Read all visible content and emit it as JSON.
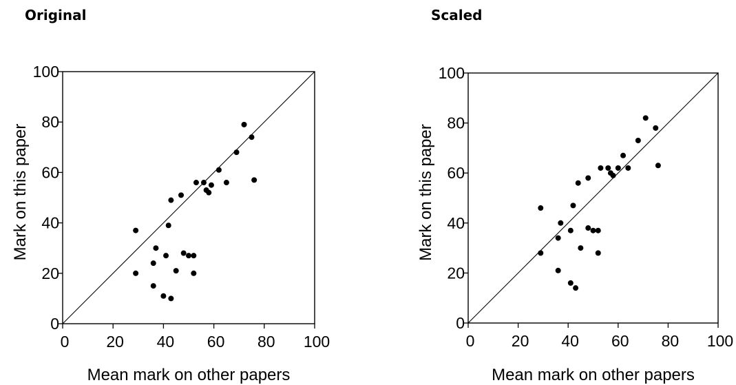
{
  "chart_data": [
    {
      "type": "scatter",
      "title": "Original",
      "xlabel": "Mean mark on other papers",
      "ylabel": "Mark on this paper",
      "xlim": [
        0,
        100
      ],
      "ylim": [
        0,
        100
      ],
      "xticks": [
        0,
        20,
        40,
        60,
        80,
        100
      ],
      "yticks": [
        0,
        20,
        40,
        60,
        80,
        100
      ],
      "reference_line": "y = x",
      "grid": false,
      "legend": "none",
      "points": [
        {
          "x": 29,
          "y": 37
        },
        {
          "x": 29,
          "y": 20
        },
        {
          "x": 36,
          "y": 24
        },
        {
          "x": 36,
          "y": 15
        },
        {
          "x": 37,
          "y": 30
        },
        {
          "x": 40,
          "y": 11
        },
        {
          "x": 41,
          "y": 27
        },
        {
          "x": 42,
          "y": 39
        },
        {
          "x": 43,
          "y": 10
        },
        {
          "x": 43,
          "y": 49
        },
        {
          "x": 45,
          "y": 21
        },
        {
          "x": 47,
          "y": 51
        },
        {
          "x": 48,
          "y": 28
        },
        {
          "x": 50,
          "y": 27
        },
        {
          "x": 52,
          "y": 20
        },
        {
          "x": 52,
          "y": 27
        },
        {
          "x": 53,
          "y": 56
        },
        {
          "x": 56,
          "y": 56
        },
        {
          "x": 57,
          "y": 53
        },
        {
          "x": 58,
          "y": 52
        },
        {
          "x": 59,
          "y": 55
        },
        {
          "x": 62,
          "y": 61
        },
        {
          "x": 65,
          "y": 56
        },
        {
          "x": 69,
          "y": 68
        },
        {
          "x": 72,
          "y": 79
        },
        {
          "x": 75,
          "y": 74
        },
        {
          "x": 76,
          "y": 57
        }
      ]
    },
    {
      "type": "scatter",
      "title": "Scaled",
      "xlabel": "Mean mark on other papers",
      "ylabel": "Mark on this paper",
      "xlim": [
        0,
        100
      ],
      "ylim": [
        0,
        100
      ],
      "xticks": [
        0,
        20,
        40,
        60,
        80,
        100
      ],
      "yticks": [
        0,
        20,
        40,
        60,
        80,
        100
      ],
      "reference_line": "y = x",
      "grid": false,
      "legend": "none",
      "points": [
        {
          "x": 29,
          "y": 46
        },
        {
          "x": 29,
          "y": 28
        },
        {
          "x": 36,
          "y": 34
        },
        {
          "x": 36,
          "y": 21
        },
        {
          "x": 37,
          "y": 40
        },
        {
          "x": 41,
          "y": 16
        },
        {
          "x": 41,
          "y": 37
        },
        {
          "x": 42,
          "y": 47
        },
        {
          "x": 43,
          "y": 14
        },
        {
          "x": 44,
          "y": 56
        },
        {
          "x": 45,
          "y": 30
        },
        {
          "x": 48,
          "y": 58
        },
        {
          "x": 48,
          "y": 38
        },
        {
          "x": 50,
          "y": 37
        },
        {
          "x": 52,
          "y": 28
        },
        {
          "x": 52,
          "y": 37
        },
        {
          "x": 53,
          "y": 62
        },
        {
          "x": 56,
          "y": 62
        },
        {
          "x": 57,
          "y": 60
        },
        {
          "x": 58,
          "y": 59
        },
        {
          "x": 60,
          "y": 62
        },
        {
          "x": 62,
          "y": 67
        },
        {
          "x": 64,
          "y": 62
        },
        {
          "x": 68,
          "y": 73
        },
        {
          "x": 71,
          "y": 82
        },
        {
          "x": 75,
          "y": 78
        },
        {
          "x": 76,
          "y": 63
        }
      ]
    }
  ]
}
